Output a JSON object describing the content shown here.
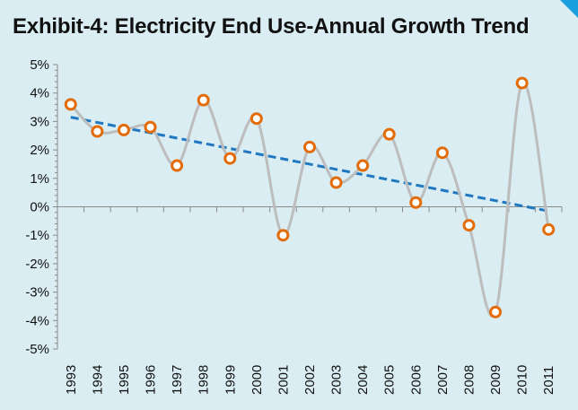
{
  "chart_data": {
    "type": "line",
    "title": "Exhibit-4: Electricity End Use-Annual Growth Trend",
    "xlabel": "",
    "ylabel": "",
    "ylim": [
      -5,
      5
    ],
    "ytick_labels": [
      "5%",
      "4%",
      "3%",
      "2%",
      "1%",
      "0%",
      "-1%",
      "-2%",
      "-3%",
      "-4%",
      "-5%"
    ],
    "x": [
      "1993",
      "1994",
      "1995",
      "1996",
      "1997",
      "1998",
      "1999",
      "2000",
      "2001",
      "2002",
      "2003",
      "2004",
      "2005",
      "2006",
      "2007",
      "2008",
      "2009",
      "2010",
      "2011"
    ],
    "series": [
      {
        "values": [
          3.6,
          2.65,
          2.7,
          2.8,
          1.45,
          3.75,
          1.7,
          3.1,
          -1.0,
          2.1,
          0.85,
          1.45,
          2.55,
          0.15,
          1.9,
          -0.65,
          -3.7,
          4.35,
          -0.8
        ],
        "style": "smoothed line with circular markers",
        "line_color": "#bdbdbd",
        "marker_color": "#e36c09"
      },
      {
        "type": "linear-trend",
        "start": 3.15,
        "end": -0.15,
        "end_index": 18,
        "style": "dashed",
        "color": "#1f78c1"
      }
    ],
    "grid": false,
    "legend": "none"
  },
  "colors": {
    "background": "#daedf3",
    "corner_accent": "#1aa0e0",
    "axis": "#8a8a8a"
  }
}
